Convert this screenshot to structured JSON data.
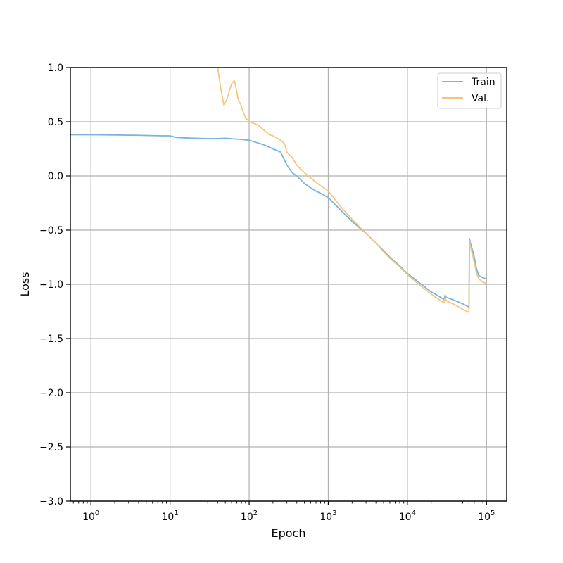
{
  "chart_data": {
    "type": "line",
    "title": "",
    "xlabel": "Epoch",
    "ylabel": "Loss",
    "xscale": "log",
    "xlim": [
      0.55,
      180000
    ],
    "ylim": [
      -3.0,
      1.0
    ],
    "grid": true,
    "legend_position": "top-right",
    "x_tick_values": [
      1,
      10,
      100,
      1000,
      10000,
      100000
    ],
    "x_tick_labels": [
      {
        "base": "10",
        "exp": "0"
      },
      {
        "base": "10",
        "exp": "1"
      },
      {
        "base": "10",
        "exp": "2"
      },
      {
        "base": "10",
        "exp": "3"
      },
      {
        "base": "10",
        "exp": "4"
      },
      {
        "base": "10",
        "exp": "5"
      }
    ],
    "y_tick_values": [
      1.0,
      0.5,
      0.0,
      -0.5,
      -1.0,
      -1.5,
      -2.0,
      -2.5,
      -3.0
    ],
    "y_tick_labels": [
      "1.0",
      "0.5",
      "0.0",
      "−0.5",
      "−1.0",
      "−1.5",
      "−2.0",
      "−2.5",
      "−3.0"
    ],
    "series": [
      {
        "name": "Train",
        "color": "#7bb6d9",
        "x": [
          0.55,
          1,
          2,
          4,
          8,
          10,
          12,
          15,
          20,
          30,
          40,
          50,
          70,
          100,
          150,
          200,
          250,
          270,
          300,
          350,
          400,
          500,
          600,
          700,
          800,
          1000,
          1500,
          2000,
          3000,
          4000,
          5000,
          6000,
          8000,
          10000,
          15000,
          20000,
          25000,
          29000,
          30000,
          31000,
          40000,
          50000,
          60000,
          61000,
          62000,
          65000,
          70000,
          75000,
          80000,
          90000,
          100000
        ],
        "y": [
          0.38,
          0.38,
          0.378,
          0.375,
          0.37,
          0.37,
          0.355,
          0.352,
          0.348,
          0.345,
          0.345,
          0.348,
          0.34,
          0.33,
          0.29,
          0.25,
          0.22,
          0.17,
          0.1,
          0.03,
          0.0,
          -0.07,
          -0.11,
          -0.14,
          -0.16,
          -0.2,
          -0.33,
          -0.42,
          -0.53,
          -0.62,
          -0.69,
          -0.75,
          -0.83,
          -0.9,
          -1.0,
          -1.07,
          -1.11,
          -1.14,
          -1.1,
          -1.12,
          -1.15,
          -1.18,
          -1.21,
          -0.58,
          -0.61,
          -0.66,
          -0.75,
          -0.86,
          -0.92,
          -0.94,
          -0.95
        ]
      },
      {
        "name": "Val.",
        "color": "#f4c47a",
        "x": [
          40,
          44,
          48,
          52,
          57,
          60,
          65,
          68,
          72,
          78,
          85,
          90,
          95,
          100,
          110,
          120,
          130,
          150,
          180,
          200,
          250,
          280,
          300,
          350,
          400,
          500,
          600,
          700,
          800,
          1000,
          1500,
          2000,
          3000,
          4000,
          5000,
          6000,
          8000,
          10000,
          15000,
          20000,
          25000,
          29000,
          30000,
          31000,
          40000,
          50000,
          60000,
          61000,
          62000,
          65000,
          70000,
          75000,
          80000,
          90000,
          100000
        ],
        "y": [
          1.0,
          0.8,
          0.65,
          0.7,
          0.8,
          0.85,
          0.88,
          0.82,
          0.72,
          0.66,
          0.58,
          0.54,
          0.52,
          0.5,
          0.49,
          0.48,
          0.47,
          0.43,
          0.38,
          0.37,
          0.33,
          0.3,
          0.22,
          0.17,
          0.1,
          0.03,
          -0.02,
          -0.06,
          -0.09,
          -0.14,
          -0.3,
          -0.4,
          -0.53,
          -0.62,
          -0.7,
          -0.76,
          -0.84,
          -0.91,
          -1.02,
          -1.09,
          -1.14,
          -1.17,
          -1.12,
          -1.15,
          -1.19,
          -1.23,
          -1.26,
          -0.6,
          -0.64,
          -0.7,
          -0.8,
          -0.9,
          -0.95,
          -0.98,
          -0.99
        ]
      }
    ]
  }
}
